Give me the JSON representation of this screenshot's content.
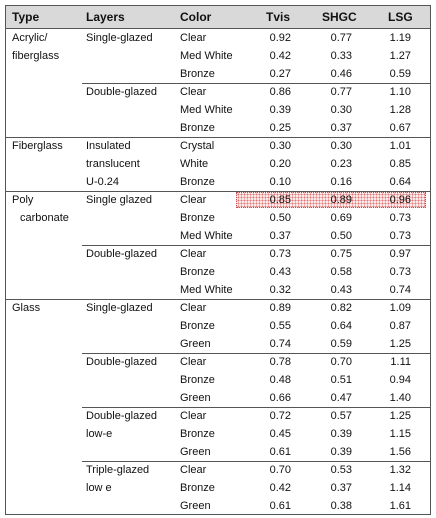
{
  "header": [
    "Type",
    "Layers",
    "Color",
    "Tvis",
    "SHGC",
    "LSG"
  ],
  "groups": [
    {
      "type": [
        "Acrylic/",
        "fiberglass"
      ],
      "sections": [
        {
          "layers": [
            "Single-glazed"
          ],
          "rows": [
            [
              "Clear",
              "0.92",
              "0.77",
              "1.19"
            ],
            [
              "Med White",
              "0.42",
              "0.33",
              "1.27"
            ],
            [
              "Bronze",
              "0.27",
              "0.46",
              "0.59"
            ]
          ]
        },
        {
          "layers": [
            "Double-glazed"
          ],
          "rows": [
            [
              "Clear",
              "0.86",
              "0.77",
              "1.10"
            ],
            [
              "Med White",
              "0.39",
              "0.30",
              "1.28"
            ],
            [
              "Bronze",
              "0.25",
              "0.37",
              "0.67"
            ]
          ]
        }
      ]
    },
    {
      "type": [
        "Fiberglass"
      ],
      "sections": [
        {
          "layers": [
            "Insulated",
            "translucent",
            "U-0.24"
          ],
          "rows": [
            [
              "Crystal",
              "0.30",
              "0.30",
              "1.01"
            ],
            [
              "White",
              "0.20",
              "0.23",
              "0.85"
            ],
            [
              "Bronze",
              "0.10",
              "0.16",
              "0.64"
            ]
          ]
        }
      ]
    },
    {
      "type": [
        "Poly",
        "carbonate"
      ],
      "sections": [
        {
          "layers": [
            "Single glazed"
          ],
          "rows": [
            [
              "Clear",
              "0.85",
              "0.89",
              "0.96"
            ],
            [
              "Bronze",
              "0.50",
              "0.69",
              "0.73"
            ],
            [
              "Med White",
              "0.37",
              "0.50",
              "0.73"
            ]
          ]
        },
        {
          "layers": [
            "Double-glazed"
          ],
          "rows": [
            [
              "Clear",
              "0.73",
              "0.75",
              "0.97"
            ],
            [
              "Bronze",
              "0.43",
              "0.58",
              "0.73"
            ],
            [
              "Med White",
              "0.32",
              "0.43",
              "0.74"
            ]
          ]
        }
      ]
    },
    {
      "type": [
        "Glass"
      ],
      "sections": [
        {
          "layers": [
            "Single-glazed"
          ],
          "rows": [
            [
              "Clear",
              "0.89",
              "0.82",
              "1.09"
            ],
            [
              "Bronze",
              "0.55",
              "0.64",
              "0.87"
            ],
            [
              "Green",
              "0.74",
              "0.59",
              "1.25"
            ]
          ]
        },
        {
          "layers": [
            "Double-glazed"
          ],
          "rows": [
            [
              "Clear",
              "0.78",
              "0.70",
              "1.11"
            ],
            [
              "Bronze",
              "0.48",
              "0.51",
              "0.94"
            ],
            [
              "Green",
              "0.66",
              "0.47",
              "1.40"
            ]
          ]
        },
        {
          "layers": [
            "Double-glazed",
            "low-e"
          ],
          "rows": [
            [
              "Clear",
              "0.72",
              "0.57",
              "1.25"
            ],
            [
              "Bronze",
              "0.45",
              "0.39",
              "1.15"
            ],
            [
              "Green",
              "0.61",
              "0.39",
              "1.56"
            ]
          ]
        },
        {
          "layers": [
            "Triple-glazed",
            "low e"
          ],
          "rows": [
            [
              "Clear",
              "0.70",
              "0.53",
              "1.32"
            ],
            [
              "Bronze",
              "0.42",
              "0.37",
              "1.14"
            ],
            [
              "Green",
              "0.61",
              "0.38",
              "1.61"
            ]
          ]
        }
      ]
    }
  ]
}
